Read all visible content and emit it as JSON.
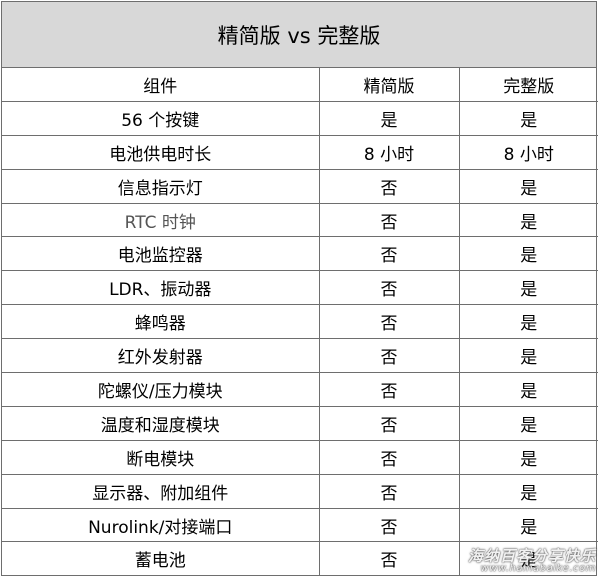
{
  "title": "精简版 vs 完整版",
  "headers": [
    "组件",
    "精简版",
    "完整版"
  ],
  "rows": [
    [
      "56 个按键",
      "是",
      "是"
    ],
    [
      "电池供电时长",
      "8 小时",
      "8 小时"
    ],
    [
      "信息指示灯",
      "否",
      "是"
    ],
    [
      "RTC 时钟",
      "否",
      "是"
    ],
    [
      "电池监控器",
      "否",
      "是"
    ],
    [
      "LDR、振动器",
      "否",
      "是"
    ],
    [
      "蜂鸣器",
      "否",
      "是"
    ],
    [
      "红外发射器",
      "否",
      "是"
    ],
    [
      "陀螺仪/压力模块",
      "否",
      "是"
    ],
    [
      "温度和湿度模块",
      "否",
      "是"
    ],
    [
      "断电模块",
      "否",
      "是"
    ],
    [
      "显示器、附加组件",
      "否",
      "是"
    ],
    [
      "Nurolink/对接端口",
      "否",
      "是"
    ],
    [
      "蓄电池",
      "否",
      "是"
    ]
  ],
  "watermark": {
    "name": "海纳百客分享快乐",
    "url": "www.hainabaike.com"
  }
}
